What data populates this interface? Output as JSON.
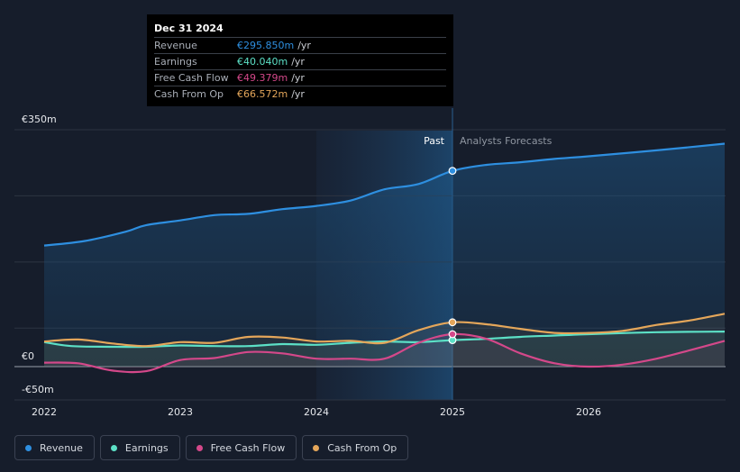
{
  "chart_data": {
    "type": "line",
    "title": "",
    "xlabel": "",
    "ylabel": "",
    "ylim": [
      -50,
      350
    ],
    "x_ticks": [
      "2022",
      "2023",
      "2024",
      "2025",
      "2026"
    ],
    "y_ticks": [
      "€350m",
      "€0",
      "-€50m"
    ],
    "divider_labels": {
      "past": "Past",
      "forecast": "Analysts Forecasts"
    },
    "series": [
      {
        "name": "Revenue",
        "color": "#2e8fe0",
        "points": [
          [
            2022.0,
            183
          ],
          [
            2022.3,
            190
          ],
          [
            2022.6,
            204
          ],
          [
            2022.75,
            214
          ],
          [
            2023.0,
            221
          ],
          [
            2023.25,
            229
          ],
          [
            2023.5,
            231
          ],
          [
            2023.75,
            238
          ],
          [
            2024.0,
            243
          ],
          [
            2024.25,
            251
          ],
          [
            2024.5,
            268
          ],
          [
            2024.75,
            276
          ],
          [
            2025.0,
            296
          ],
          [
            2025.25,
            305
          ],
          [
            2025.5,
            309
          ],
          [
            2025.75,
            314
          ],
          [
            2026.0,
            318
          ],
          [
            2026.5,
            327
          ],
          [
            2027.0,
            337
          ]
        ]
      },
      {
        "name": "Earnings",
        "color": "#5ce0c6",
        "points": [
          [
            2022.0,
            37
          ],
          [
            2022.2,
            31
          ],
          [
            2022.5,
            30
          ],
          [
            2022.75,
            30
          ],
          [
            2023.0,
            32
          ],
          [
            2023.25,
            31
          ],
          [
            2023.5,
            31
          ],
          [
            2023.75,
            34
          ],
          [
            2024.0,
            33
          ],
          [
            2024.25,
            36
          ],
          [
            2024.5,
            38
          ],
          [
            2024.75,
            37
          ],
          [
            2025.0,
            40
          ],
          [
            2025.25,
            42
          ],
          [
            2025.5,
            45
          ],
          [
            2025.75,
            47
          ],
          [
            2026.0,
            49
          ],
          [
            2026.5,
            52
          ],
          [
            2027.0,
            53
          ]
        ]
      },
      {
        "name": "Free Cash Flow",
        "color": "#d4488a",
        "points": [
          [
            2022.0,
            6
          ],
          [
            2022.25,
            5
          ],
          [
            2022.5,
            -6
          ],
          [
            2022.75,
            -7
          ],
          [
            2023.0,
            10
          ],
          [
            2023.25,
            13
          ],
          [
            2023.5,
            22
          ],
          [
            2023.75,
            20
          ],
          [
            2024.0,
            12
          ],
          [
            2024.25,
            12
          ],
          [
            2024.5,
            12
          ],
          [
            2024.75,
            36
          ],
          [
            2025.0,
            49
          ],
          [
            2025.25,
            42
          ],
          [
            2025.5,
            20
          ],
          [
            2025.75,
            5
          ],
          [
            2026.0,
            0
          ],
          [
            2026.25,
            3
          ],
          [
            2026.5,
            12
          ],
          [
            2026.75,
            25
          ],
          [
            2027.0,
            39
          ]
        ]
      },
      {
        "name": "Cash From Op",
        "color": "#e4a65a",
        "points": [
          [
            2022.0,
            38
          ],
          [
            2022.25,
            41
          ],
          [
            2022.5,
            35
          ],
          [
            2022.75,
            31
          ],
          [
            2023.0,
            37
          ],
          [
            2023.25,
            36
          ],
          [
            2023.5,
            45
          ],
          [
            2023.75,
            44
          ],
          [
            2024.0,
            38
          ],
          [
            2024.25,
            39
          ],
          [
            2024.5,
            36
          ],
          [
            2024.75,
            55
          ],
          [
            2025.0,
            67
          ],
          [
            2025.25,
            64
          ],
          [
            2025.5,
            57
          ],
          [
            2025.75,
            51
          ],
          [
            2026.0,
            51
          ],
          [
            2026.25,
            54
          ],
          [
            2026.5,
            63
          ],
          [
            2026.75,
            70
          ],
          [
            2027.0,
            80
          ]
        ]
      }
    ]
  },
  "tooltip": {
    "date": "Dec 31 2024",
    "rows": [
      {
        "label": "Revenue",
        "value": "€295.850m",
        "unit": "/yr",
        "color": "#2e8fe0"
      },
      {
        "label": "Earnings",
        "value": "€40.040m",
        "unit": "/yr",
        "color": "#5ce0c6"
      },
      {
        "label": "Free Cash Flow",
        "value": "€49.379m",
        "unit": "/yr",
        "color": "#d4488a"
      },
      {
        "label": "Cash From Op",
        "value": "€66.572m",
        "unit": "/yr",
        "color": "#e4a65a"
      }
    ]
  },
  "legend": [
    {
      "label": "Revenue",
      "color": "#2e8fe0"
    },
    {
      "label": "Earnings",
      "color": "#5ce0c6"
    },
    {
      "label": "Free Cash Flow",
      "color": "#d4488a"
    },
    {
      "label": "Cash From Op",
      "color": "#e4a65a"
    }
  ]
}
